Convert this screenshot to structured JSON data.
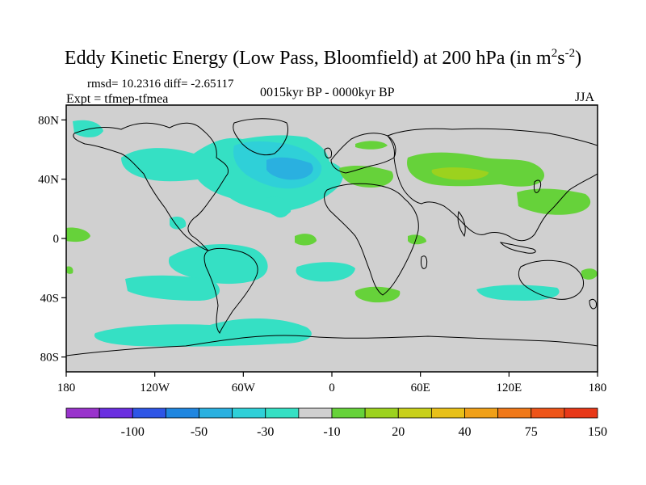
{
  "title": {
    "main": "Eddy Kinetic Energy (Low Pass, Bloomfield) at 200 hPa (in m",
    "sup1": "2",
    "mid": "s",
    "sup2": "-2",
    "end": ")"
  },
  "stats": "rmsd= 10.2316  diff= -2.65117",
  "experiment": "Expt = tfmep-tfmea",
  "period": "0015kyr BP - 0000kyr BP",
  "season": "JJA",
  "map": {
    "background_color": "#d0d0d0",
    "lat_labels": [
      "80N",
      "40N",
      "0",
      "40S",
      "80S"
    ],
    "lon_labels": [
      "180",
      "120W",
      "60W",
      "0",
      "60E",
      "120E",
      "180"
    ],
    "lat_values": [
      80,
      40,
      0,
      -40,
      -80
    ],
    "lon_values": [
      -180,
      -120,
      -60,
      0,
      60,
      120,
      180
    ]
  },
  "colorbar": {
    "colors": [
      "#9933cc",
      "#6a2ee0",
      "#2e55e6",
      "#1f86e0",
      "#2ab0e0",
      "#2fd0d8",
      "#35e0c4",
      "#d0d0d0",
      "#66d23a",
      "#9cd21e",
      "#c8d01a",
      "#e8c018",
      "#f0a018",
      "#f07818",
      "#ee5418",
      "#e83818"
    ],
    "labels": [
      "-100",
      "-50",
      "-30",
      "-10",
      "20",
      "40",
      "75",
      "150"
    ]
  }
}
